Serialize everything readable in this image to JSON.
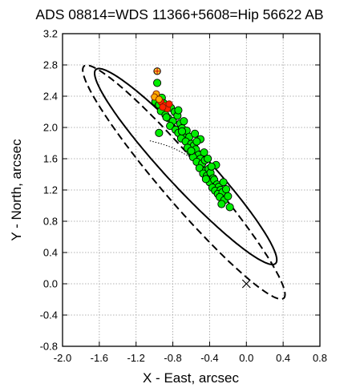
{
  "chart_data": {
    "type": "scatter",
    "title": "ADS 08814=WDS 11366+5608=Hip 56622 AB",
    "xlabel": "X - East, arcsec",
    "ylabel": "Y - North, arcsec",
    "xlim": [
      -2.0,
      0.8
    ],
    "ylim": [
      -0.8,
      3.2
    ],
    "xticks": [
      "-2.0",
      "-1.6",
      "-1.2",
      "-0.8",
      "-0.4",
      "0.0",
      "0.4",
      "0.8"
    ],
    "yticks": [
      "-0.8",
      "-0.4",
      "0.0",
      "0.4",
      "0.8",
      "1.2",
      "1.6",
      "2.0",
      "2.4",
      "2.8",
      "3.2"
    ],
    "grid": true,
    "primary_position": {
      "x": 0.0,
      "y": 0.0,
      "marker": "x"
    },
    "orbits": [
      {
        "style": "solid",
        "center": [
          -0.66,
          1.5
        ],
        "semi_major": 1.58,
        "semi_minor": 0.24,
        "angle_deg": -52
      },
      {
        "style": "dashed",
        "center": [
          -0.68,
          1.3
        ],
        "semi_major": 1.84,
        "semi_minor": 0.25,
        "angle_deg": -54
      }
    ],
    "dotted_arc": [
      [
        -1.05,
        1.83
      ],
      [
        -0.92,
        1.79
      ],
      [
        -0.8,
        1.74
      ],
      [
        -0.7,
        1.68
      ],
      [
        -0.6,
        1.61
      ],
      [
        -0.5,
        1.53
      ],
      [
        -0.42,
        1.44
      ],
      [
        -0.36,
        1.35
      ]
    ],
    "series": [
      {
        "color": "#00ee00",
        "x": [
          -0.97,
          -0.92,
          -0.99,
          -0.95,
          -0.9,
          -0.86,
          -0.93,
          -0.82,
          -0.88,
          -0.78,
          -0.85,
          -0.8,
          -0.75,
          -0.83,
          -0.72,
          -0.77,
          -0.7,
          -0.74,
          -0.68,
          -0.65,
          -0.71,
          -0.62,
          -0.66,
          -0.6,
          -0.63,
          -0.57,
          -0.61,
          -0.55,
          -0.52,
          -0.58,
          -0.5,
          -0.54,
          -0.48,
          -0.45,
          -0.51,
          -0.44,
          -0.47,
          -0.41,
          -0.43,
          -0.39,
          -0.36,
          -0.4,
          -0.35,
          -0.32,
          -0.37,
          -0.3,
          -0.34,
          -0.28,
          -0.31,
          -0.26,
          -0.22,
          -0.29,
          -0.24,
          -0.2,
          -0.27,
          -0.18,
          -0.68,
          -0.74,
          -0.56,
          -0.46,
          -0.33,
          -0.25,
          -0.87,
          -0.64,
          -0.5,
          -0.42,
          -0.38,
          -0.6,
          -0.7,
          -0.95,
          -0.54,
          -0.44
        ],
        "y": [
          2.57,
          2.38,
          2.33,
          2.29,
          2.31,
          2.27,
          2.21,
          2.25,
          2.16,
          2.2,
          2.12,
          2.08,
          2.15,
          2.02,
          2.05,
          1.97,
          1.99,
          1.93,
          1.9,
          1.96,
          1.86,
          1.88,
          1.82,
          1.79,
          1.73,
          1.77,
          1.69,
          1.72,
          1.65,
          1.62,
          1.6,
          1.56,
          1.54,
          1.58,
          1.48,
          1.45,
          1.41,
          1.47,
          1.38,
          1.42,
          1.35,
          1.3,
          1.33,
          1.27,
          1.23,
          1.24,
          1.19,
          1.2,
          1.15,
          1.17,
          1.21,
          1.11,
          1.07,
          1.12,
          1.02,
          0.98,
          2.08,
          2.22,
          1.92,
          1.68,
          1.52,
          1.3,
          2.13,
          1.74,
          1.85,
          1.6,
          1.5,
          1.7,
          1.95,
          1.93,
          1.82,
          1.34
        ]
      },
      {
        "color": "#ff2200",
        "x": [
          -0.93,
          -0.89,
          -0.86,
          -0.91,
          -0.84
        ],
        "y": [
          2.33,
          2.28,
          2.24,
          2.26,
          2.3
        ]
      },
      {
        "color": "#ffaa00",
        "x": [
          -0.98,
          -1.0,
          -0.95
        ],
        "y": [
          2.43,
          2.39,
          2.36
        ]
      },
      {
        "color": "#aaaaaa",
        "x": [
          -0.97
        ],
        "y": [
          2.72
        ]
      }
    ]
  }
}
